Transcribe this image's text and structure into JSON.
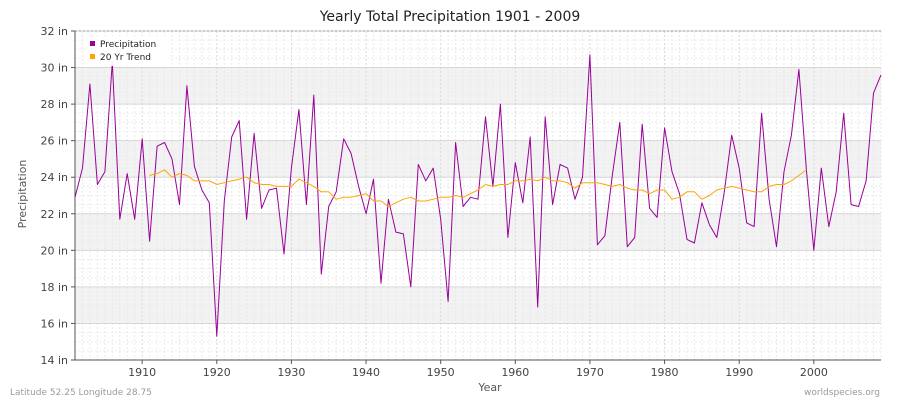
{
  "chart_data": {
    "type": "line",
    "title": "Yearly Total Precipitation 1901 - 2009",
    "xlabel": "Year",
    "ylabel": "Precipitation",
    "xlim": [
      1901,
      2009
    ],
    "ylim": [
      14,
      32
    ],
    "y_ticks": [
      14,
      16,
      18,
      20,
      22,
      24,
      26,
      28,
      30,
      32
    ],
    "y_tick_labels": [
      "14 in",
      "16 in",
      "18 in",
      "20 in",
      "22 in",
      "24 in",
      "26 in",
      "28 in",
      "30 in",
      "32 in"
    ],
    "x_ticks": [
      1910,
      1920,
      1930,
      1940,
      1950,
      1960,
      1970,
      1980,
      1990,
      2000
    ],
    "x_tick_labels": [
      "1910",
      "1920",
      "1930",
      "1940",
      "1950",
      "1960",
      "1970",
      "1980",
      "1990",
      "2000"
    ],
    "legend": {
      "position": "top-left",
      "entries": [
        "Precipitation",
        "20 Yr Trend"
      ]
    },
    "series": [
      {
        "name": "Precipitation",
        "color": "#990099",
        "x_start": 1901,
        "values": [
          22.9,
          24.5,
          29.1,
          23.6,
          24.3,
          30.3,
          21.7,
          24.2,
          21.7,
          26.1,
          20.5,
          25.7,
          25.9,
          25.0,
          22.5,
          29.0,
          24.6,
          23.3,
          22.6,
          15.3,
          22.7,
          26.2,
          27.1,
          21.7,
          26.4,
          22.3,
          23.3,
          23.4,
          19.8,
          24.5,
          27.7,
          22.5,
          28.5,
          18.7,
          22.4,
          23.2,
          26.1,
          25.3,
          23.5,
          22.0,
          23.9,
          18.2,
          22.8,
          21.0,
          20.9,
          18.0,
          24.7,
          23.8,
          24.5,
          21.7,
          17.2,
          25.9,
          22.4,
          22.9,
          22.8,
          27.3,
          23.5,
          28.0,
          20.7,
          24.8,
          22.6,
          26.2,
          16.9,
          27.3,
          22.5,
          24.7,
          24.5,
          22.8,
          24.0,
          30.7,
          20.3,
          20.8,
          24.1,
          27.0,
          20.2,
          20.7,
          26.9,
          22.3,
          21.8,
          26.7,
          24.3,
          23.1,
          20.6,
          20.4,
          22.6,
          21.4,
          20.7,
          23.2,
          26.3,
          24.5,
          21.5,
          21.3,
          27.5,
          22.8,
          20.2,
          24.3,
          26.3,
          29.9,
          24.4,
          20.0,
          24.5,
          21.3,
          23.2,
          27.5,
          22.5,
          22.4,
          23.8,
          28.6,
          29.6
        ]
      },
      {
        "name": "20 Yr Trend",
        "color": "#ffa500",
        "x_start": 1911,
        "values": [
          24.1,
          24.2,
          24.4,
          24.0,
          24.2,
          24.1,
          23.8,
          23.8,
          23.8,
          23.6,
          23.7,
          23.8,
          23.9,
          24.0,
          23.7,
          23.6,
          23.6,
          23.5,
          23.5,
          23.5,
          23.9,
          23.7,
          23.5,
          23.2,
          23.2,
          22.8,
          22.9,
          22.9,
          23.0,
          23.1,
          22.7,
          22.7,
          22.4,
          22.6,
          22.8,
          22.9,
          22.7,
          22.7,
          22.8,
          22.9,
          22.9,
          23.0,
          22.9,
          23.1,
          23.3,
          23.6,
          23.5,
          23.6,
          23.6,
          23.8,
          23.8,
          23.9,
          23.8,
          24.0,
          23.8,
          23.8,
          23.7,
          23.4,
          23.7,
          23.7,
          23.7,
          23.6,
          23.5,
          23.6,
          23.4,
          23.3,
          23.3,
          23.1,
          23.3,
          23.3,
          22.8,
          22.9,
          23.2,
          23.2,
          22.8,
          23.0,
          23.3,
          23.4,
          23.5,
          23.4,
          23.3,
          23.2,
          23.2,
          23.5,
          23.6,
          23.6,
          23.8,
          24.1,
          24.4
        ]
      }
    ]
  },
  "footer": {
    "left": "Latitude 52.25 Longitude 28.75",
    "right": "worldspecies.org"
  }
}
